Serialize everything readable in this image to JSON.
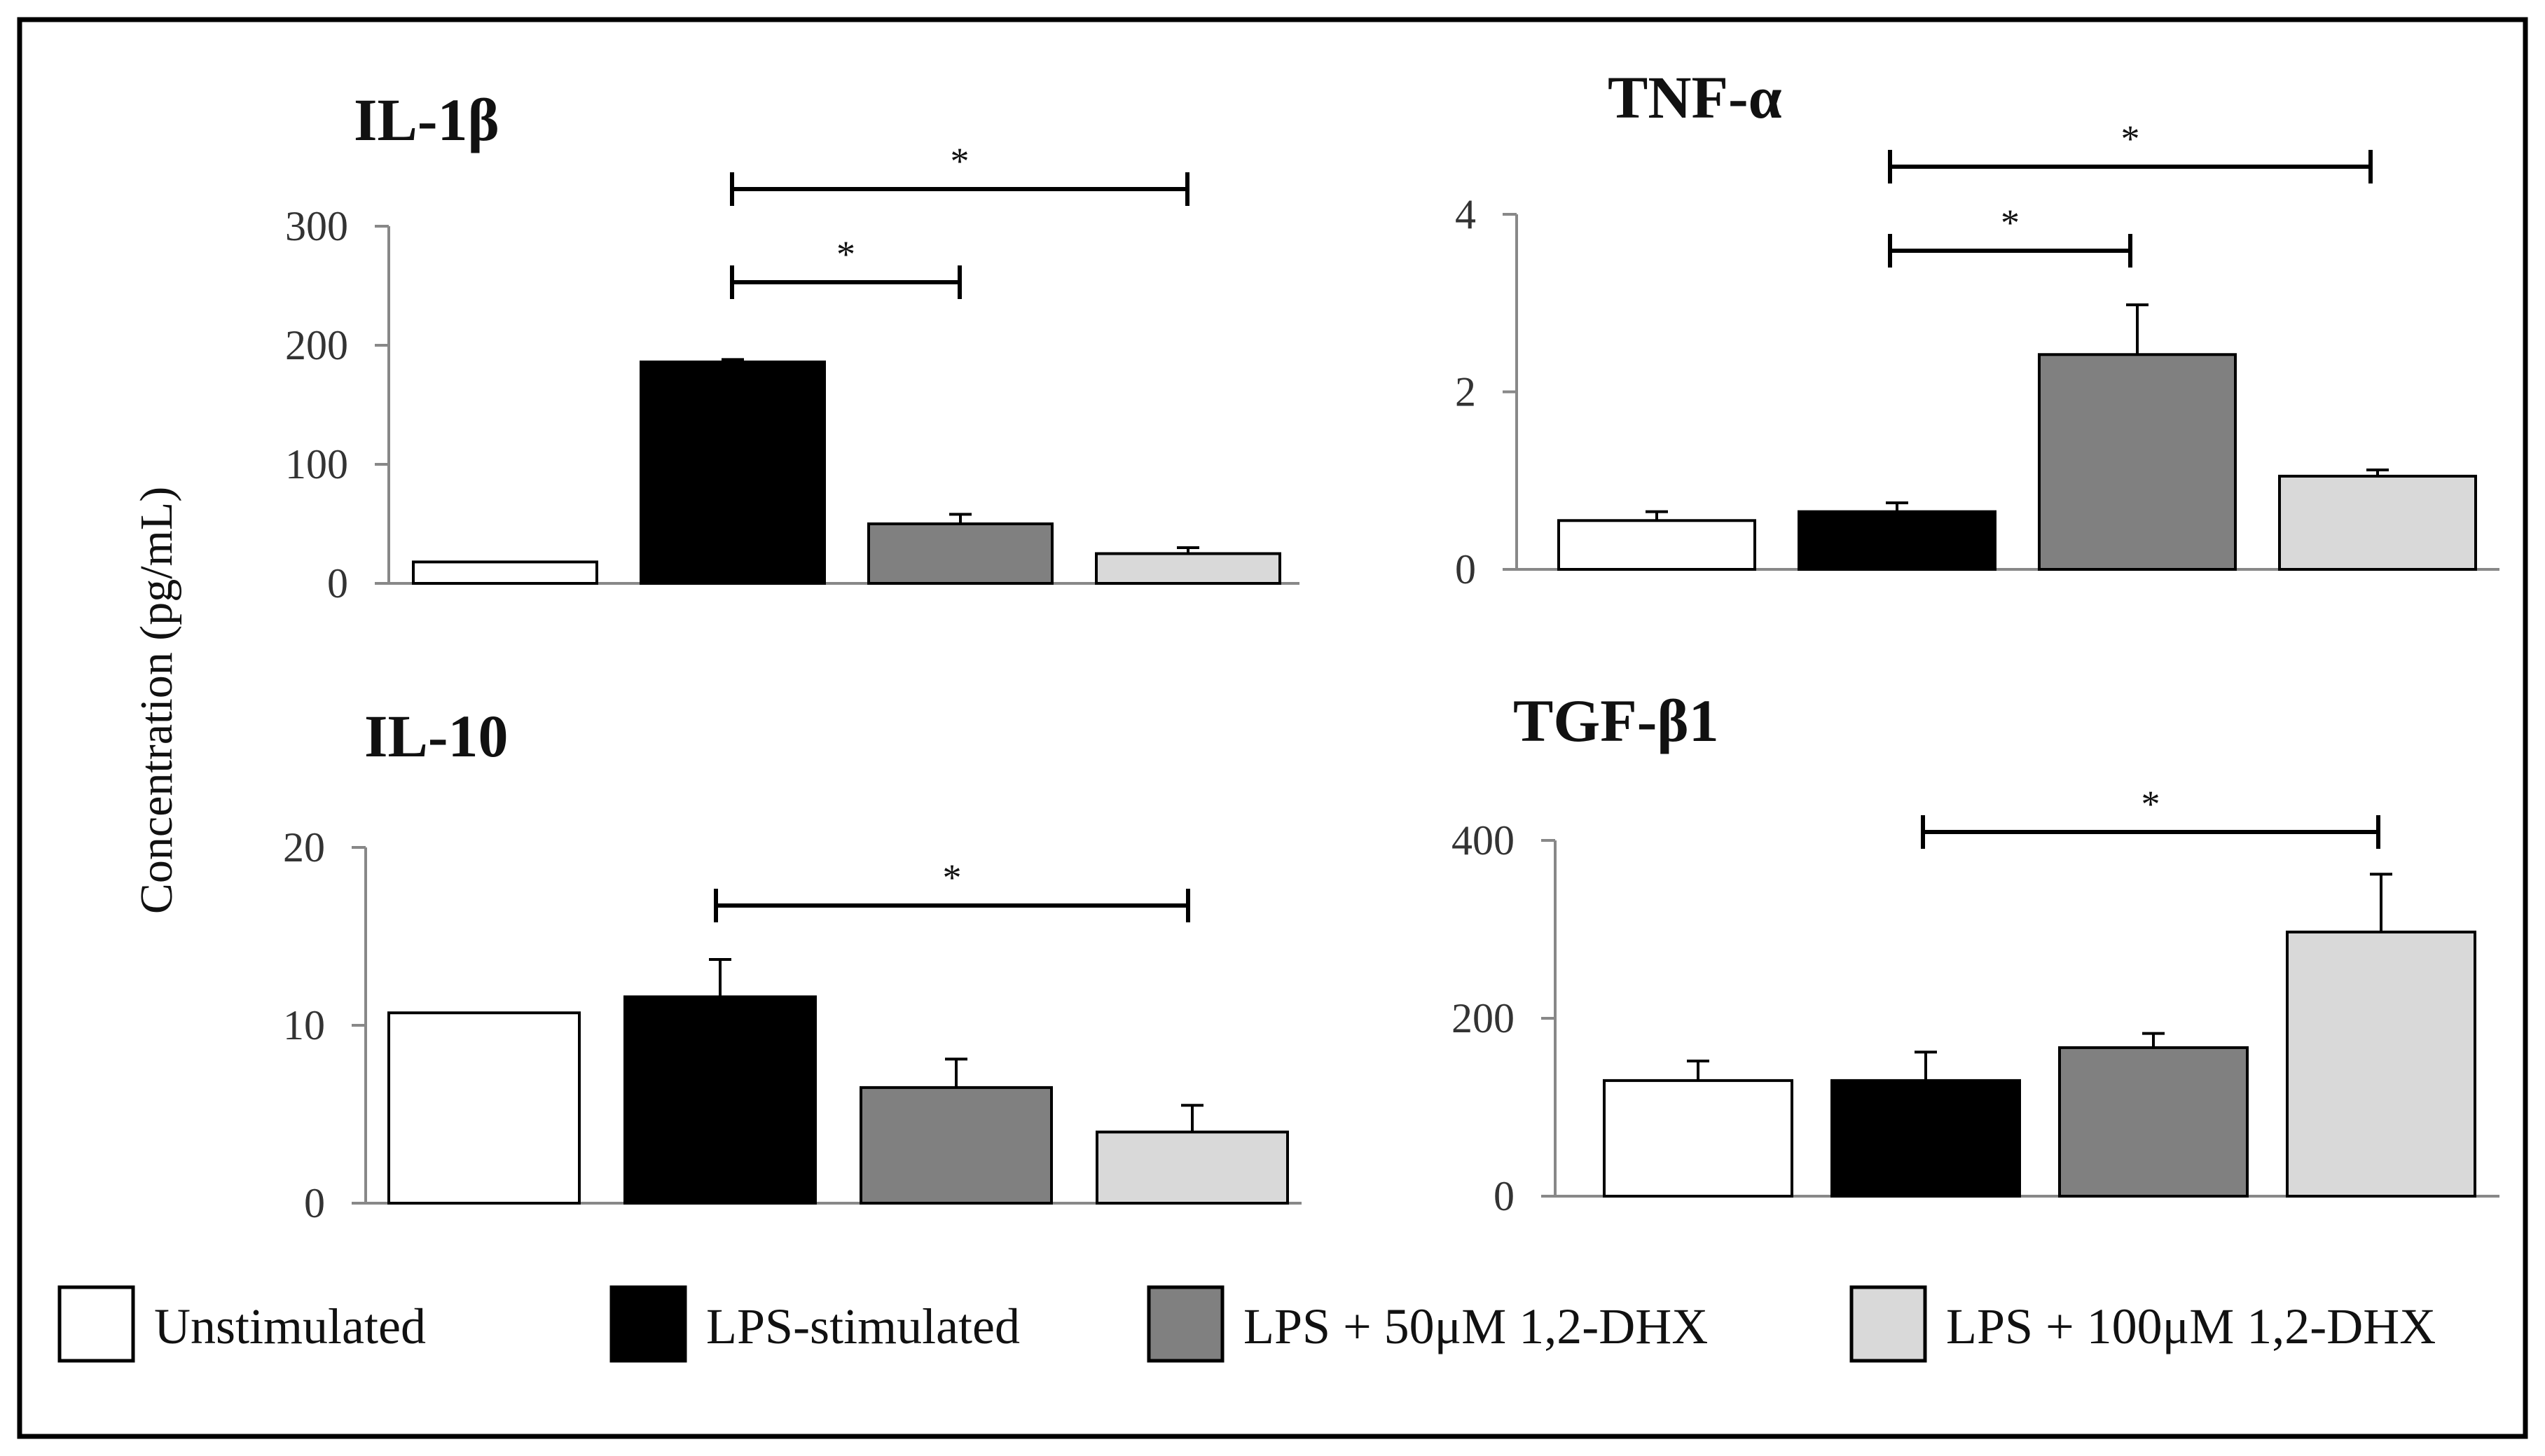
{
  "chart_data": {
    "type": "bar",
    "y_axis_label": "Concentration (pg/mL)",
    "groups": [
      {
        "name": "Unstimulated",
        "color": "#ffffff"
      },
      {
        "name": "LPS-stimulated",
        "color": "#000000"
      },
      {
        "name": "LPS + 50μM 1,2-DHX",
        "color": "#808080"
      },
      {
        "name": "LPS + 100μM 1,2-DHX",
        "color": "#d9d9d9"
      }
    ],
    "panels": [
      {
        "id": "il1b",
        "title": "IL-1β",
        "ylim": [
          0,
          300
        ],
        "yticks": [
          0,
          100,
          200,
          300
        ],
        "values": [
          18,
          186,
          50,
          25
        ],
        "errors": [
          0,
          2,
          8,
          5
        ],
        "significance": [
          {
            "from": 1,
            "to": 3,
            "label": "*"
          },
          {
            "from": 1,
            "to": 2,
            "label": "*"
          }
        ]
      },
      {
        "id": "tnfa",
        "title": "TNF-α",
        "ylim": [
          0,
          4
        ],
        "yticks": [
          0,
          2,
          4
        ],
        "values": [
          0.55,
          0.65,
          2.42,
          1.05
        ],
        "errors": [
          0.1,
          0.1,
          0.56,
          0.07
        ],
        "significance": [
          {
            "from": 1,
            "to": 3,
            "label": "*"
          },
          {
            "from": 1,
            "to": 2,
            "label": "*"
          }
        ]
      },
      {
        "id": "il10",
        "title": "IL-10",
        "ylim": [
          0,
          20
        ],
        "yticks": [
          0,
          10,
          20
        ],
        "values": [
          10.7,
          11.6,
          6.5,
          4.0
        ],
        "errors": [
          0,
          2.1,
          1.6,
          1.5
        ],
        "significance": [
          {
            "from": 1,
            "to": 3,
            "label": "*"
          }
        ]
      },
      {
        "id": "tgfb1",
        "title": "TGF-β1",
        "ylim": [
          0,
          400
        ],
        "yticks": [
          0,
          200,
          400
        ],
        "values": [
          130,
          130,
          167,
          297
        ],
        "errors": [
          22,
          32,
          16,
          65
        ],
        "significance": [
          {
            "from": 1,
            "to": 3,
            "label": "*"
          }
        ]
      }
    ]
  }
}
